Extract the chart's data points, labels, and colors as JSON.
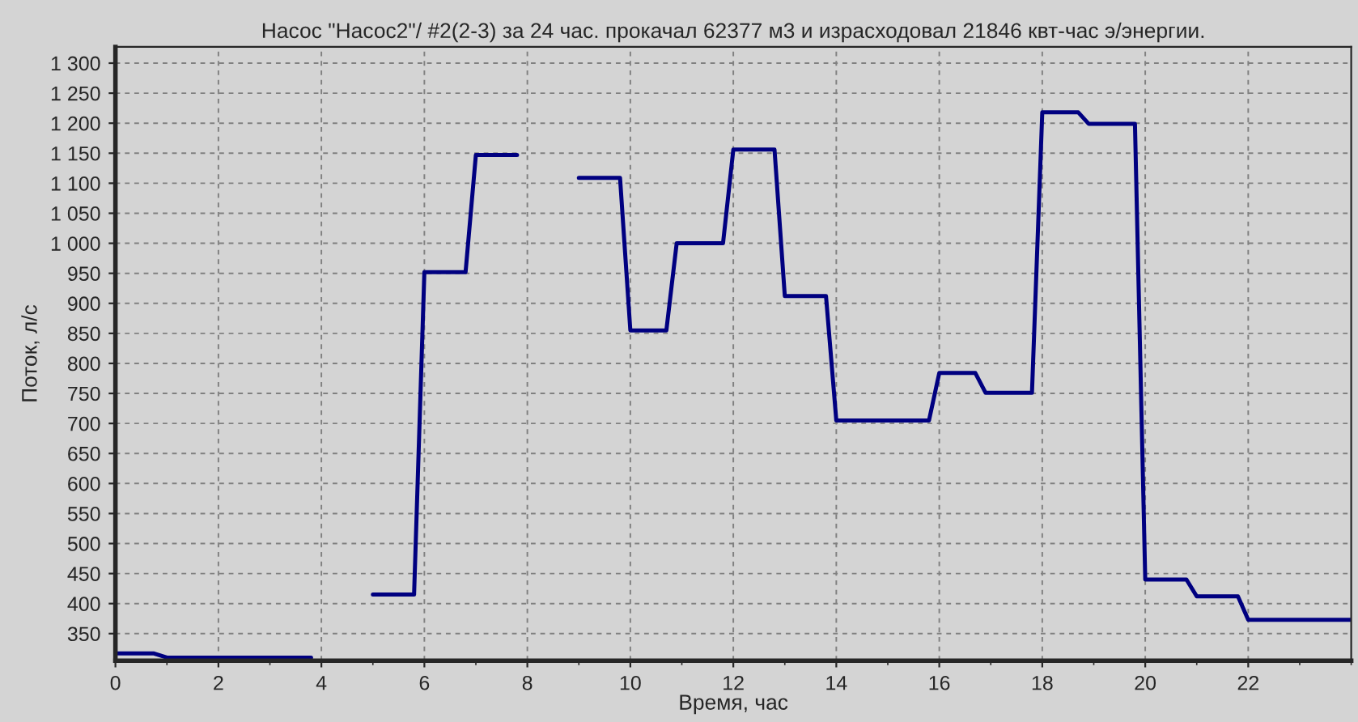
{
  "chart_data": {
    "type": "line",
    "title": "Насос \"Насос2\"/ #2(2-3) за 24 час. прокачал 62377 м3 и израсходовал 21846 квт-час э/энергии.",
    "xlabel": "Время, час",
    "ylabel": "Поток, л/с",
    "x": [
      0,
      0.75,
      1.0,
      3.8,
      3.95,
      4.75,
      5.0,
      5.8,
      6.0,
      6.8,
      7.0,
      7.8,
      8.0,
      8.8,
      9.0,
      9.8,
      10.0,
      10.7,
      10.9,
      11.8,
      12.0,
      12.8,
      13.0,
      13.8,
      14.0,
      15.8,
      16.0,
      16.7,
      16.9,
      17.8,
      18.0,
      18.7,
      18.9,
      19.8,
      20.0,
      20.8,
      21.0,
      21.8,
      22.0,
      24.0
    ],
    "series": [
      {
        "color": "#000080",
        "values": [
          317,
          317,
          310,
          310,
          null,
          null,
          415,
          415,
          952,
          952,
          1147,
          1147,
          null,
          null,
          1109,
          1109,
          855,
          855,
          1000,
          1000,
          1156,
          1156,
          912,
          912,
          705,
          705,
          784,
          784,
          751,
          751,
          1218,
          1218,
          1199,
          1199,
          440,
          440,
          412,
          412,
          373,
          373
        ]
      }
    ],
    "xlim": [
      0,
      24
    ],
    "xticks": [
      0,
      2,
      4,
      6,
      8,
      10,
      12,
      14,
      16,
      18,
      20,
      22
    ],
    "ylim": [
      305,
      1327
    ],
    "yticks": [
      350,
      400,
      450,
      500,
      550,
      600,
      650,
      700,
      750,
      800,
      850,
      900,
      950,
      {
        "value": 1000,
        "label": "1 000"
      },
      {
        "value": 1050,
        "label": "1 050"
      },
      {
        "value": 1100,
        "label": "1 100"
      },
      {
        "value": 1150,
        "label": "1 150"
      },
      {
        "value": 1200,
        "label": "1 200"
      },
      {
        "value": 1250,
        "label": "1 250"
      },
      {
        "value": 1300,
        "label": "1 300"
      }
    ],
    "grid": true,
    "line_style": "solid",
    "marker": "none"
  }
}
